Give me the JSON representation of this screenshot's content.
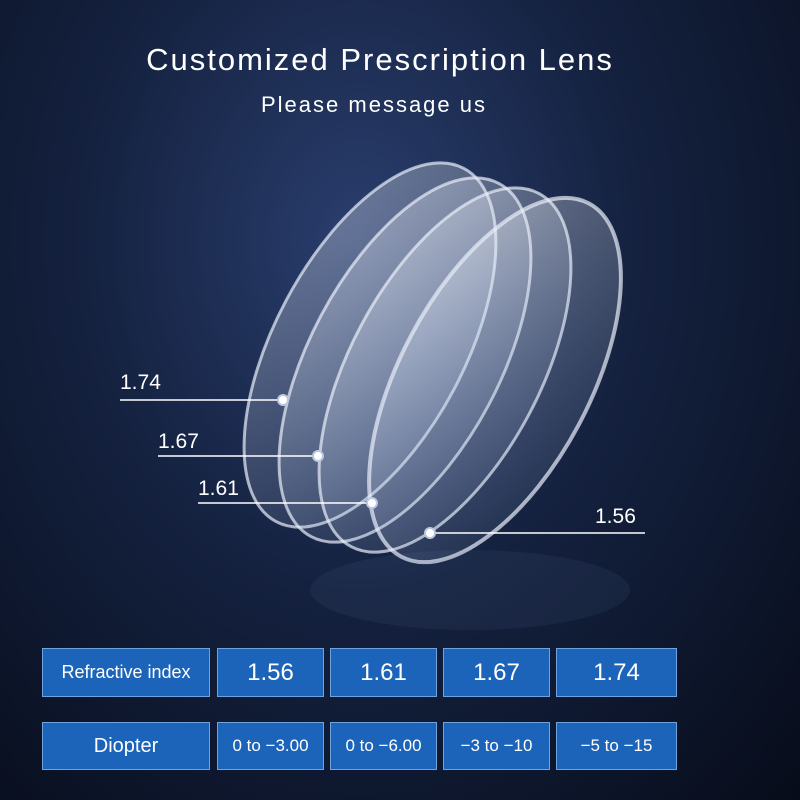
{
  "header": {
    "title": "Customized Prescription Lens",
    "subtitle": "Please message us"
  },
  "callouts": [
    "1.74",
    "1.67",
    "1.61",
    "1.56"
  ],
  "table": {
    "rows": [
      [
        "Refractive index",
        "1.56",
        "1.61",
        "1.67",
        "1.74"
      ],
      [
        "Diopter",
        "0 to −3.00",
        "0 to −6.00",
        "−3 to −10",
        "−5 to −15"
      ]
    ]
  }
}
